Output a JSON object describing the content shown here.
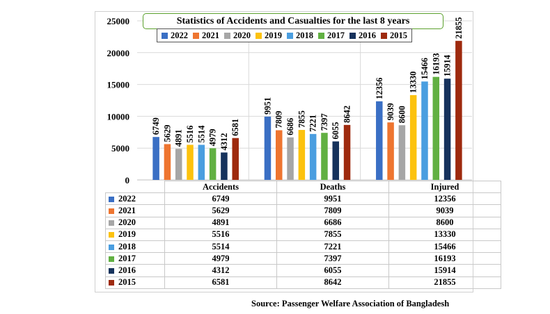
{
  "chart_data": {
    "type": "bar",
    "title": "Statistics of Accidents and Casualties for the last 8 years",
    "categories": [
      "Accidents",
      "Deaths",
      "Injured"
    ],
    "ylim": [
      0,
      25000
    ],
    "yticks": [
      "0",
      "5000",
      "10000",
      "15000",
      "20000",
      "25000"
    ],
    "grid": true,
    "legend_position": "top",
    "series": [
      {
        "name": "2022",
        "color": "#3a6fc4",
        "values": [
          6749,
          9951,
          12356
        ]
      },
      {
        "name": "2021",
        "color": "#ee7530",
        "values": [
          5629,
          7809,
          9039
        ]
      },
      {
        "name": "2020",
        "color": "#a6a6a6",
        "values": [
          4891,
          6686,
          8600
        ]
      },
      {
        "name": "2019",
        "color": "#fcc20e",
        "values": [
          5516,
          7855,
          13330
        ]
      },
      {
        "name": "2018",
        "color": "#4a9ee0",
        "values": [
          5514,
          7221,
          15466
        ]
      },
      {
        "name": "2017",
        "color": "#61b042",
        "values": [
          4979,
          7397,
          16193
        ]
      },
      {
        "name": "2016",
        "color": "#16325c",
        "values": [
          4312,
          6055,
          15914
        ]
      },
      {
        "name": "2015",
        "color": "#9e2a0e",
        "values": [
          6581,
          8642,
          21855
        ]
      }
    ]
  },
  "source": "Source:  Passenger Welfare Association of Bangladesh"
}
